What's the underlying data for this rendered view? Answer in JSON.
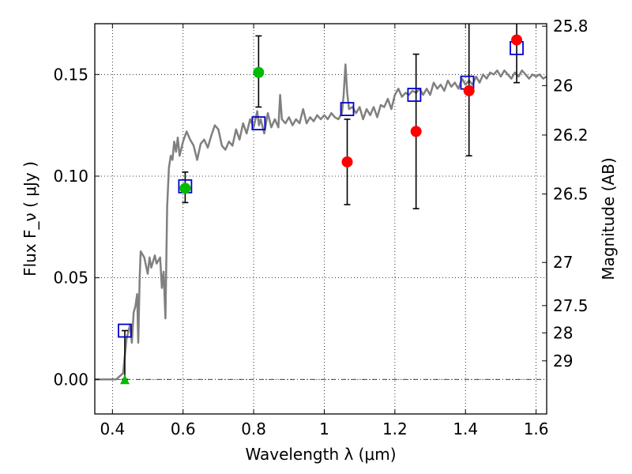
{
  "chart_data": {
    "type": "scatter",
    "xlabel": "Wavelength  λ (μm)",
    "ylabel": "Flux  F_ν  ( μJy )",
    "ylabel_right": "Magnitude (AB)",
    "xlim": [
      0.35,
      1.63
    ],
    "ylim": [
      -0.017,
      0.175
    ],
    "grid": true,
    "x_ticks": [
      0.4,
      0.6,
      0.8,
      1.0,
      1.2,
      1.4,
      1.6
    ],
    "x_tick_labels": [
      "0.4",
      "0.6",
      "0.8",
      "1",
      "1.2",
      "1.4",
      "1.6"
    ],
    "y_ticks": [
      0.0,
      0.05,
      0.1,
      0.15
    ],
    "y_tick_labels": [
      "0.00",
      "0.05",
      "0.10",
      "0.15"
    ],
    "right_ticks": [
      {
        "label": "25.8",
        "mag": 25.8
      },
      {
        "label": "26",
        "mag": 26.0
      },
      {
        "label": "26.2",
        "mag": 26.2
      },
      {
        "label": "26.5",
        "mag": 26.5
      },
      {
        "label": "27",
        "mag": 27.0
      },
      {
        "label": "27.5",
        "mag": 27.5
      },
      {
        "label": "28",
        "mag": 28.0
      },
      {
        "label": "29",
        "mag": 29.0
      }
    ],
    "colors": {
      "spectrum": "#808080",
      "model": "#0000cc",
      "ground": "#00bb00",
      "hst": "#ff0000",
      "error": "#000000"
    },
    "spectrum": [
      [
        0.35,
        0.0
      ],
      [
        0.41,
        0.0
      ],
      [
        0.43,
        0.003
      ],
      [
        0.44,
        0.02
      ],
      [
        0.45,
        0.027
      ],
      [
        0.455,
        0.018
      ],
      [
        0.46,
        0.033
      ],
      [
        0.465,
        0.036
      ],
      [
        0.47,
        0.042
      ],
      [
        0.473,
        0.018
      ],
      [
        0.477,
        0.05
      ],
      [
        0.48,
        0.063
      ],
      [
        0.49,
        0.06
      ],
      [
        0.5,
        0.052
      ],
      [
        0.505,
        0.06
      ],
      [
        0.51,
        0.055
      ],
      [
        0.52,
        0.061
      ],
      [
        0.525,
        0.057
      ],
      [
        0.535,
        0.06
      ],
      [
        0.54,
        0.045
      ],
      [
        0.545,
        0.053
      ],
      [
        0.55,
        0.03
      ],
      [
        0.555,
        0.085
      ],
      [
        0.56,
        0.104
      ],
      [
        0.565,
        0.11
      ],
      [
        0.57,
        0.108
      ],
      [
        0.575,
        0.117
      ],
      [
        0.58,
        0.112
      ],
      [
        0.585,
        0.119
      ],
      [
        0.59,
        0.11
      ],
      [
        0.6,
        0.117
      ],
      [
        0.61,
        0.122
      ],
      [
        0.62,
        0.118
      ],
      [
        0.63,
        0.115
      ],
      [
        0.64,
        0.108
      ],
      [
        0.645,
        0.112
      ],
      [
        0.65,
        0.116
      ],
      [
        0.66,
        0.118
      ],
      [
        0.67,
        0.114
      ],
      [
        0.68,
        0.12
      ],
      [
        0.69,
        0.125
      ],
      [
        0.7,
        0.123
      ],
      [
        0.71,
        0.115
      ],
      [
        0.72,
        0.113
      ],
      [
        0.73,
        0.117
      ],
      [
        0.74,
        0.115
      ],
      [
        0.75,
        0.123
      ],
      [
        0.76,
        0.118
      ],
      [
        0.77,
        0.126
      ],
      [
        0.78,
        0.121
      ],
      [
        0.79,
        0.128
      ],
      [
        0.8,
        0.124
      ],
      [
        0.81,
        0.132
      ],
      [
        0.815,
        0.125
      ],
      [
        0.82,
        0.128
      ],
      [
        0.83,
        0.121
      ],
      [
        0.84,
        0.131
      ],
      [
        0.85,
        0.124
      ],
      [
        0.86,
        0.128
      ],
      [
        0.87,
        0.124
      ],
      [
        0.875,
        0.14
      ],
      [
        0.88,
        0.128
      ],
      [
        0.89,
        0.126
      ],
      [
        0.9,
        0.129
      ],
      [
        0.91,
        0.125
      ],
      [
        0.92,
        0.128
      ],
      [
        0.93,
        0.126
      ],
      [
        0.94,
        0.133
      ],
      [
        0.95,
        0.126
      ],
      [
        0.96,
        0.129
      ],
      [
        0.97,
        0.127
      ],
      [
        0.98,
        0.13
      ],
      [
        0.99,
        0.128
      ],
      [
        1.0,
        0.13
      ],
      [
        1.01,
        0.128
      ],
      [
        1.02,
        0.131
      ],
      [
        1.03,
        0.129
      ],
      [
        1.04,
        0.128
      ],
      [
        1.05,
        0.131
      ],
      [
        1.055,
        0.14
      ],
      [
        1.06,
        0.155
      ],
      [
        1.065,
        0.141
      ],
      [
        1.07,
        0.133
      ],
      [
        1.08,
        0.134
      ],
      [
        1.09,
        0.131
      ],
      [
        1.1,
        0.134
      ],
      [
        1.11,
        0.128
      ],
      [
        1.12,
        0.133
      ],
      [
        1.13,
        0.13
      ],
      [
        1.14,
        0.134
      ],
      [
        1.15,
        0.129
      ],
      [
        1.16,
        0.135
      ],
      [
        1.17,
        0.134
      ],
      [
        1.18,
        0.138
      ],
      [
        1.19,
        0.133
      ],
      [
        1.2,
        0.14
      ],
      [
        1.21,
        0.143
      ],
      [
        1.22,
        0.139
      ],
      [
        1.23,
        0.141
      ],
      [
        1.24,
        0.14
      ],
      [
        1.25,
        0.142
      ],
      [
        1.26,
        0.141
      ],
      [
        1.27,
        0.143
      ],
      [
        1.28,
        0.14
      ],
      [
        1.29,
        0.143
      ],
      [
        1.3,
        0.14
      ],
      [
        1.31,
        0.146
      ],
      [
        1.32,
        0.143
      ],
      [
        1.33,
        0.145
      ],
      [
        1.34,
        0.142
      ],
      [
        1.35,
        0.147
      ],
      [
        1.36,
        0.144
      ],
      [
        1.37,
        0.146
      ],
      [
        1.38,
        0.143
      ],
      [
        1.39,
        0.148
      ],
      [
        1.4,
        0.145
      ],
      [
        1.41,
        0.147
      ],
      [
        1.42,
        0.145
      ],
      [
        1.43,
        0.149
      ],
      [
        1.44,
        0.146
      ],
      [
        1.45,
        0.15
      ],
      [
        1.46,
        0.148
      ],
      [
        1.47,
        0.151
      ],
      [
        1.48,
        0.15
      ],
      [
        1.49,
        0.152
      ],
      [
        1.5,
        0.149
      ],
      [
        1.51,
        0.152
      ],
      [
        1.52,
        0.15
      ],
      [
        1.53,
        0.148
      ],
      [
        1.54,
        0.151
      ],
      [
        1.55,
        0.149
      ],
      [
        1.56,
        0.152
      ],
      [
        1.57,
        0.15
      ],
      [
        1.58,
        0.148
      ],
      [
        1.59,
        0.15
      ],
      [
        1.6,
        0.149
      ],
      [
        1.61,
        0.15
      ],
      [
        1.62,
        0.148
      ],
      [
        1.63,
        0.149
      ]
    ],
    "model_points": [
      {
        "x": 0.435,
        "y": 0.024
      },
      {
        "x": 0.606,
        "y": 0.095
      },
      {
        "x": 0.814,
        "y": 0.126
      },
      {
        "x": 1.065,
        "y": 0.133
      },
      {
        "x": 1.255,
        "y": 0.14
      },
      {
        "x": 1.405,
        "y": 0.146
      },
      {
        "x": 1.545,
        "y": 0.163
      }
    ],
    "ground_points": [
      {
        "x": 0.606,
        "y": 0.094,
        "err_lo": 0.087,
        "err_hi": 0.102
      },
      {
        "x": 0.814,
        "y": 0.151,
        "err_lo": 0.134,
        "err_hi": 0.169
      }
    ],
    "ground_limit": {
      "x": 0.435,
      "y": 0.0,
      "err_lo": 0.0,
      "err_hi": 0.024
    },
    "hst_points": [
      {
        "x": 1.065,
        "y": 0.107,
        "err_lo": 0.086,
        "err_hi": 0.128
      },
      {
        "x": 1.26,
        "y": 0.122,
        "err_lo": 0.084,
        "err_hi": 0.16
      },
      {
        "x": 1.41,
        "y": 0.142,
        "err_lo": 0.11,
        "err_hi": 0.175
      },
      {
        "x": 1.545,
        "y": 0.167,
        "err_lo": 0.146,
        "err_hi": 0.175
      }
    ]
  }
}
